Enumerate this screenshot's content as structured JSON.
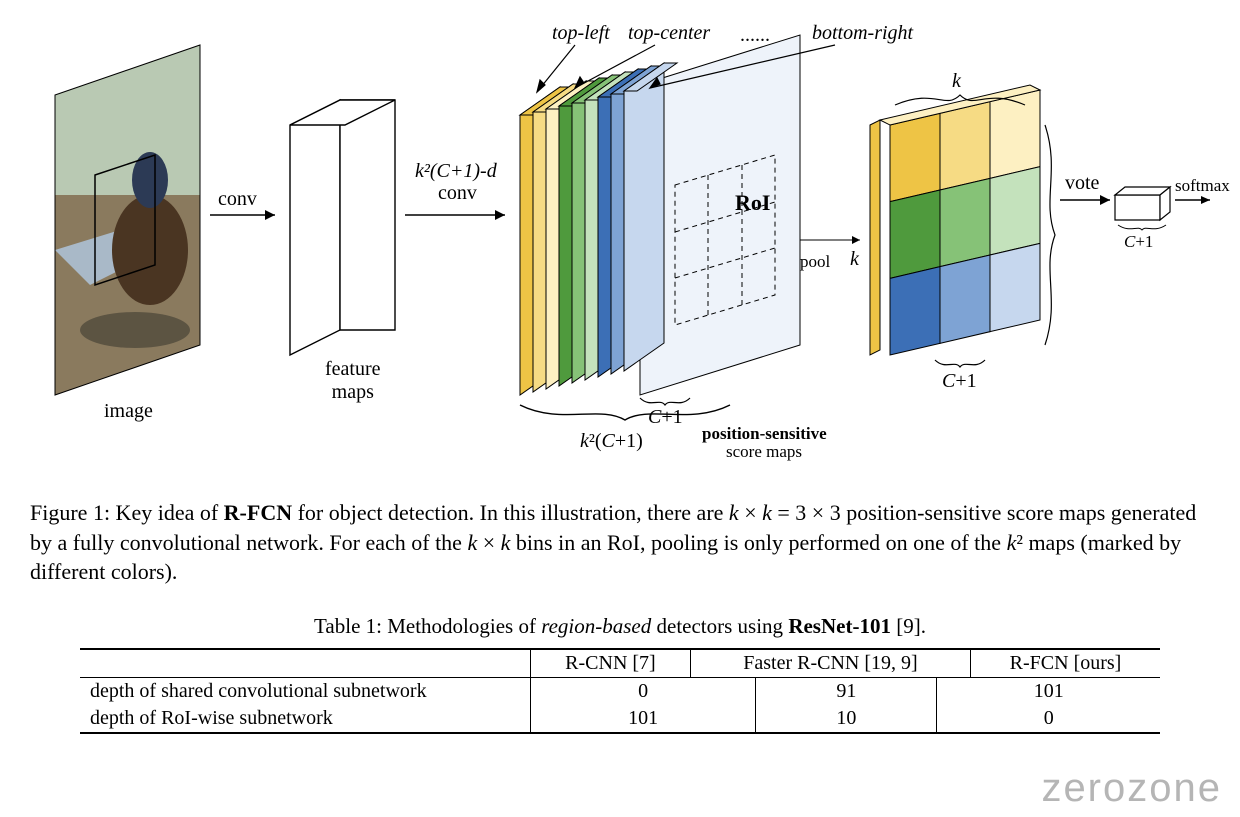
{
  "figure": {
    "labels": {
      "image": "image",
      "conv1": "conv",
      "feature_maps": "feature\nmaps",
      "conv2_top": "k²(C+1)-d",
      "conv2_bottom": "conv",
      "roi": "RoI",
      "pool": "pool",
      "vote": "vote",
      "softmax": "softmax",
      "top_left": "top-left",
      "top_center": "top-center",
      "dots": "......",
      "bottom_right": "bottom-right",
      "k_top": "k",
      "k_side": "k",
      "c_plus_1_a": "C+1",
      "c_plus_1_b": "C+1",
      "c_plus_1_c": "C+1",
      "k2c1": "k²(C+1)",
      "ps_top": "position-sensitive",
      "ps_bot": "score maps"
    },
    "slab_colors": [
      "#eec445",
      "#f6db84",
      "#fdf0c2",
      "#4f9a3d",
      "#86c277",
      "#c4e2bc",
      "#3c6fb6",
      "#7ea3d4",
      "#c6d7ee"
    ],
    "grid_colors": [
      [
        "#eec445",
        "#f6db84",
        "#fdf0c2"
      ],
      [
        "#4f9a3d",
        "#86c277",
        "#c4e2bc"
      ],
      [
        "#3c6fb6",
        "#7ea3d4",
        "#c6d7ee"
      ]
    ],
    "photo_colors": {
      "sky": "#b9c9b3",
      "ground": "#8a7a5e",
      "shadow": "#3e3a30",
      "horse": "#4a3522",
      "rider": "#2c3a55",
      "truck": "#a9b9c8"
    },
    "line_color": "#000000",
    "light_fill": "#eef3fa"
  },
  "caption": {
    "prefix": "Figure 1:  Key idea of ",
    "rfcn": "R-FCN",
    "mid1": " for object detection.  In this illustration, there are ",
    "kxk": "k × k = 3 × 3",
    "mid2": " position-sensitive score maps generated by a fully convolutional network. For each of the ",
    "kxk2": "k × k",
    "mid3": " bins in an RoI, pooling is only performed on one of the ",
    "k2": "k²",
    "tail": " maps (marked by different colors)."
  },
  "table": {
    "title_pre": "Table 1: Methodologies of ",
    "title_it": "region-based",
    "title_mid": " detectors using ",
    "title_bold": "ResNet-101",
    "title_ref": " [9].",
    "cols": [
      "R-CNN [7]",
      "Faster R-CNN [19, 9]",
      "R-FCN [ours]"
    ],
    "rows": [
      {
        "label": "depth of shared convolutional subnetwork",
        "vals": [
          "0",
          "91",
          "101"
        ]
      },
      {
        "label": "depth of RoI-wise subnetwork",
        "vals": [
          "101",
          "10",
          "0"
        ]
      }
    ]
  },
  "watermark": "zerozone"
}
